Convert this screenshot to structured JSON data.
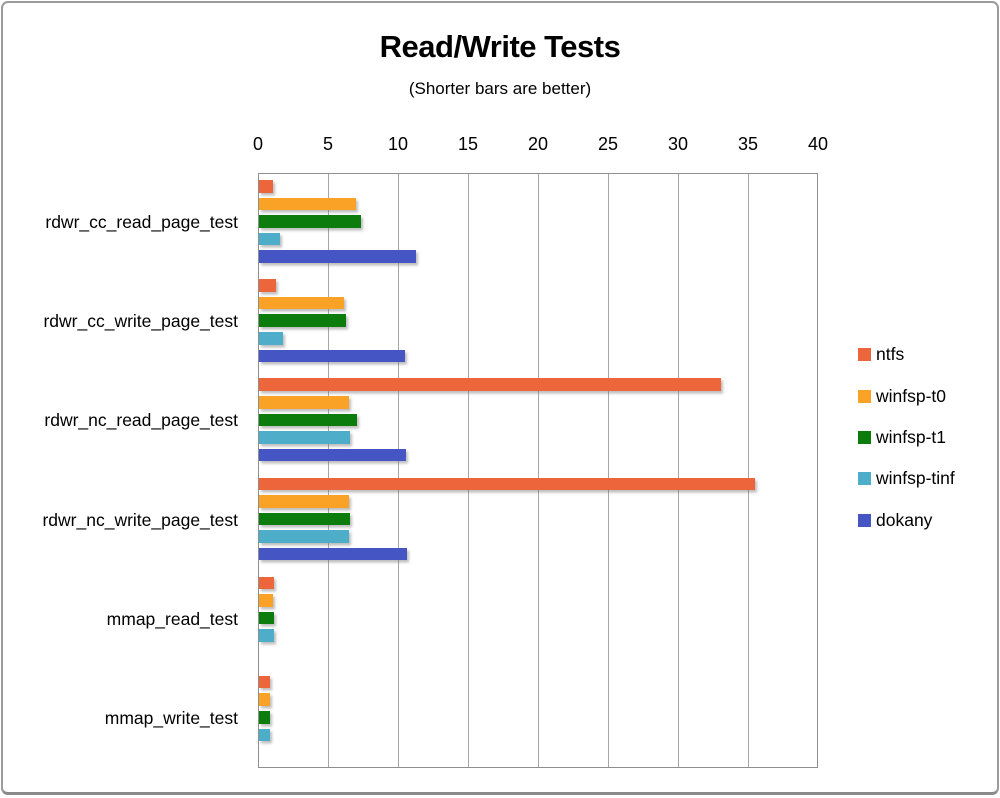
{
  "title": "Read/Write Tests",
  "subtitle": "(Shorter bars are better)",
  "chart_data": {
    "type": "bar",
    "orientation": "horizontal",
    "title": "Read/Write Tests",
    "subtitle": "(Shorter bars are better)",
    "categories": [
      "rdwr_cc_read_page_test",
      "rdwr_cc_write_page_test",
      "rdwr_nc_read_page_test",
      "rdwr_nc_write_page_test",
      "mmap_read_test",
      "mmap_write_test"
    ],
    "series": [
      {
        "name": "ntfs",
        "color": "#ED653A",
        "values": [
          1.0,
          1.2,
          33.0,
          35.4,
          1.1,
          0.8
        ]
      },
      {
        "name": "winfsp-t0",
        "color": "#F9A226",
        "values": [
          6.9,
          6.1,
          6.4,
          6.4,
          1.0,
          0.8
        ]
      },
      {
        "name": "winfsp-t1",
        "color": "#0C7D0C",
        "values": [
          7.3,
          6.2,
          7.0,
          6.5,
          1.1,
          0.8
        ]
      },
      {
        "name": "winfsp-tinf",
        "color": "#4EADC9",
        "values": [
          1.5,
          1.7,
          6.5,
          6.4,
          1.1,
          0.8
        ]
      },
      {
        "name": "dokany",
        "color": "#4556C4",
        "values": [
          11.2,
          10.4,
          10.5,
          10.6,
          null,
          null
        ]
      }
    ],
    "xlim": [
      0,
      40
    ],
    "x_ticks": [
      0,
      5,
      10,
      15,
      20,
      25,
      30,
      35,
      40
    ],
    "grid": true,
    "legend_position": "right"
  },
  "colors": {
    "gridline": "#A6A6A6",
    "plot_border": "#8F8F8F",
    "window_border": "#9B9B9B",
    "text": "#000000"
  }
}
